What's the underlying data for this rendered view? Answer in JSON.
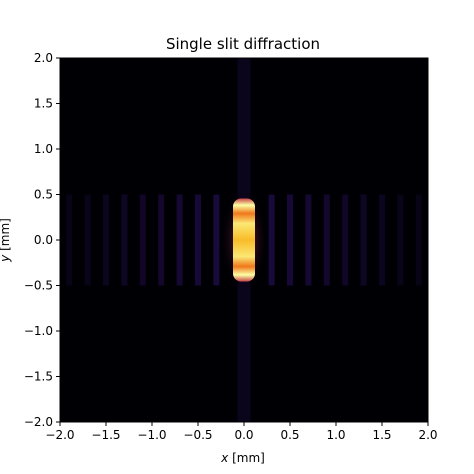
{
  "chart_data": {
    "type": "heatmap",
    "title": "Single slit diffraction",
    "xlabel": {
      "var": "x",
      "unit": " [mm]"
    },
    "ylabel": {
      "var": "y",
      "unit": " [mm]"
    },
    "xlim": [
      -2.0,
      2.0
    ],
    "ylim": [
      -2.0,
      2.0
    ],
    "x_ticks": [
      "−2.0",
      "−1.5",
      "−1.0",
      "−0.5",
      "0.0",
      "0.5",
      "1.0",
      "1.5",
      "2.0"
    ],
    "y_ticks": [
      "2.0",
      "1.5",
      "1.0",
      "0.5",
      "0.0",
      "−0.5",
      "−1.0",
      "−1.5",
      "−2.0"
    ],
    "colormap": "inferno",
    "background_color": "#000004",
    "central_band": {
      "y_min": -0.5,
      "y_max": 0.5
    },
    "central_peak_x": 0.0,
    "side_fringes_x": [
      -1.9,
      -1.7,
      -1.5,
      -1.3,
      -1.1,
      -0.9,
      -0.7,
      -0.5,
      -0.3,
      0.3,
      0.5,
      0.7,
      0.9,
      1.1,
      1.3,
      1.5,
      1.7,
      1.9
    ],
    "side_fringe_intensity": 0.12,
    "central_intensity": 1.0,
    "vertical_stripe_intensity": 0.05,
    "grid": false,
    "legend": "none"
  }
}
